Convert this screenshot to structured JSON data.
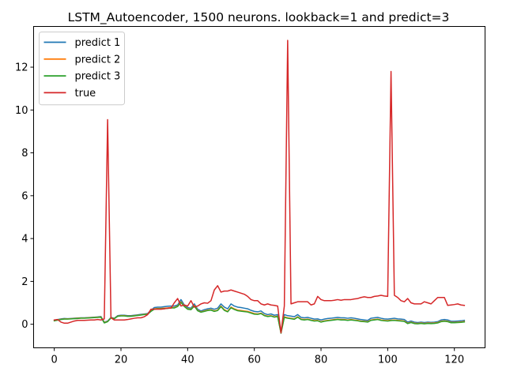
{
  "chart_data": {
    "type": "line",
    "title": "LSTM_Autoencoder, 1500 neurons. lookback=1 and predict=3",
    "xlabel": "",
    "ylabel": "",
    "xlim": [
      -6.2,
      129.2
    ],
    "ylim": [
      -1.1,
      13.9
    ],
    "xticks": [
      0,
      20,
      40,
      60,
      80,
      100,
      120
    ],
    "yticks": [
      0,
      2,
      4,
      6,
      8,
      10,
      12
    ],
    "legend_position": "upper-left",
    "grid": false,
    "series": [
      {
        "name": "predict 1",
        "color": "#1f77b4",
        "x_start": 0,
        "values": [
          0.18,
          0.22,
          0.25,
          0.27,
          0.26,
          0.27,
          0.28,
          0.29,
          0.3,
          0.3,
          0.31,
          0.32,
          0.33,
          0.34,
          0.36,
          0.1,
          0.15,
          0.32,
          0.28,
          0.4,
          0.42,
          0.42,
          0.4,
          0.4,
          0.42,
          0.44,
          0.46,
          0.48,
          0.5,
          0.65,
          0.78,
          0.8,
          0.8,
          0.82,
          0.84,
          0.85,
          0.85,
          0.9,
          1.15,
          0.9,
          0.78,
          0.75,
          0.95,
          0.7,
          0.62,
          0.68,
          0.72,
          0.75,
          0.7,
          0.75,
          0.95,
          0.8,
          0.72,
          0.95,
          0.85,
          0.8,
          0.78,
          0.75,
          0.72,
          0.65,
          0.6,
          0.58,
          0.62,
          0.5,
          0.45,
          0.48,
          0.42,
          0.45,
          -0.35,
          0.45,
          0.4,
          0.38,
          0.35,
          0.45,
          0.32,
          0.3,
          0.32,
          0.28,
          0.24,
          0.25,
          0.2,
          0.24,
          0.27,
          0.28,
          0.3,
          0.32,
          0.3,
          0.3,
          0.28,
          0.3,
          0.28,
          0.25,
          0.22,
          0.2,
          0.18,
          0.28,
          0.3,
          0.32,
          0.28,
          0.25,
          0.24,
          0.26,
          0.28,
          0.25,
          0.24,
          0.22,
          0.1,
          0.15,
          0.1,
          0.08,
          0.1,
          0.08,
          0.1,
          0.09,
          0.1,
          0.12,
          0.2,
          0.22,
          0.2,
          0.14,
          0.14,
          0.15,
          0.16,
          0.18
        ]
      },
      {
        "name": "predict 2",
        "color": "#ff7f0e",
        "x_start": 0,
        "values": [
          0.17,
          0.2,
          0.23,
          0.25,
          0.25,
          0.26,
          0.27,
          0.28,
          0.29,
          0.29,
          0.3,
          0.31,
          0.32,
          0.33,
          0.34,
          0.08,
          0.13,
          0.3,
          0.27,
          0.38,
          0.4,
          0.4,
          0.38,
          0.38,
          0.4,
          0.42,
          0.44,
          0.46,
          0.48,
          0.62,
          0.72,
          0.74,
          0.74,
          0.75,
          0.76,
          0.78,
          0.78,
          0.85,
          1.05,
          0.85,
          0.72,
          0.7,
          0.88,
          0.65,
          0.58,
          0.62,
          0.66,
          0.68,
          0.62,
          0.66,
          0.85,
          0.68,
          0.6,
          0.8,
          0.72,
          0.66,
          0.64,
          0.62,
          0.6,
          0.55,
          0.5,
          0.48,
          0.52,
          0.42,
          0.38,
          0.4,
          0.35,
          0.38,
          -0.4,
          0.35,
          0.3,
          0.28,
          0.25,
          0.35,
          0.24,
          0.22,
          0.24,
          0.2,
          0.17,
          0.18,
          0.12,
          0.16,
          0.18,
          0.2,
          0.22,
          0.24,
          0.22,
          0.22,
          0.2,
          0.22,
          0.2,
          0.18,
          0.15,
          0.14,
          0.12,
          0.2,
          0.22,
          0.24,
          0.2,
          0.18,
          0.17,
          0.19,
          0.2,
          0.18,
          0.17,
          0.15,
          0.05,
          0.1,
          0.05,
          0.04,
          0.06,
          0.04,
          0.06,
          0.05,
          0.06,
          0.08,
          0.14,
          0.16,
          0.14,
          0.09,
          0.09,
          0.1,
          0.11,
          0.13
        ]
      },
      {
        "name": "predict 3",
        "color": "#2ca02c",
        "x_start": 0,
        "values": [
          0.16,
          0.19,
          0.22,
          0.24,
          0.24,
          0.25,
          0.26,
          0.27,
          0.28,
          0.28,
          0.29,
          0.3,
          0.31,
          0.32,
          0.33,
          0.06,
          0.12,
          0.29,
          0.26,
          0.37,
          0.39,
          0.39,
          0.37,
          0.37,
          0.39,
          0.41,
          0.43,
          0.45,
          0.47,
          0.6,
          0.7,
          0.72,
          0.72,
          0.73,
          0.74,
          0.76,
          0.76,
          0.83,
          1.02,
          0.83,
          0.7,
          0.68,
          0.85,
          0.63,
          0.56,
          0.6,
          0.64,
          0.66,
          0.6,
          0.64,
          0.82,
          0.65,
          0.58,
          0.77,
          0.69,
          0.63,
          0.61,
          0.59,
          0.57,
          0.52,
          0.47,
          0.46,
          0.5,
          0.4,
          0.36,
          0.38,
          0.33,
          0.36,
          -0.42,
          0.32,
          0.28,
          0.26,
          0.23,
          0.33,
          0.22,
          0.2,
          0.22,
          0.18,
          0.15,
          0.16,
          0.1,
          0.14,
          0.16,
          0.18,
          0.2,
          0.22,
          0.2,
          0.2,
          0.18,
          0.2,
          0.18,
          0.16,
          0.13,
          0.12,
          0.1,
          0.18,
          0.2,
          0.22,
          0.18,
          0.16,
          0.15,
          0.17,
          0.18,
          0.16,
          0.15,
          0.13,
          0.03,
          0.08,
          0.03,
          0.02,
          0.04,
          0.02,
          0.04,
          0.03,
          0.04,
          0.06,
          0.12,
          0.14,
          0.12,
          0.07,
          0.07,
          0.08,
          0.09,
          0.11
        ]
      },
      {
        "name": "true",
        "color": "#d62728",
        "x_start": 0,
        "values": [
          0.2,
          0.22,
          0.1,
          0.05,
          0.05,
          0.1,
          0.15,
          0.18,
          0.18,
          0.18,
          0.19,
          0.2,
          0.2,
          0.22,
          0.2,
          0.25,
          9.55,
          0.3,
          0.2,
          0.2,
          0.2,
          0.2,
          0.22,
          0.25,
          0.28,
          0.3,
          0.3,
          0.35,
          0.45,
          0.7,
          0.7,
          0.7,
          0.7,
          0.72,
          0.75,
          0.75,
          1.0,
          1.2,
          0.85,
          0.9,
          0.85,
          1.1,
          0.8,
          0.85,
          0.95,
          1.0,
          0.98,
          1.1,
          1.6,
          1.8,
          1.5,
          1.55,
          1.55,
          1.6,
          1.55,
          1.5,
          1.45,
          1.4,
          1.3,
          1.15,
          1.1,
          1.1,
          0.95,
          0.9,
          0.95,
          0.9,
          0.88,
          0.85,
          -0.4,
          0.85,
          13.25,
          0.95,
          1.0,
          1.05,
          1.05,
          1.05,
          1.05,
          0.9,
          0.95,
          1.3,
          1.15,
          1.1,
          1.1,
          1.1,
          1.12,
          1.15,
          1.12,
          1.15,
          1.15,
          1.15,
          1.18,
          1.2,
          1.25,
          1.28,
          1.25,
          1.25,
          1.3,
          1.32,
          1.35,
          1.32,
          1.3,
          11.8,
          1.35,
          1.25,
          1.1,
          1.05,
          1.2,
          1.0,
          0.95,
          0.95,
          0.95,
          1.05,
          1.0,
          0.95,
          1.1,
          1.25,
          1.25,
          1.25,
          0.88,
          0.9,
          0.92,
          0.95,
          0.9,
          0.88
        ]
      }
    ]
  }
}
